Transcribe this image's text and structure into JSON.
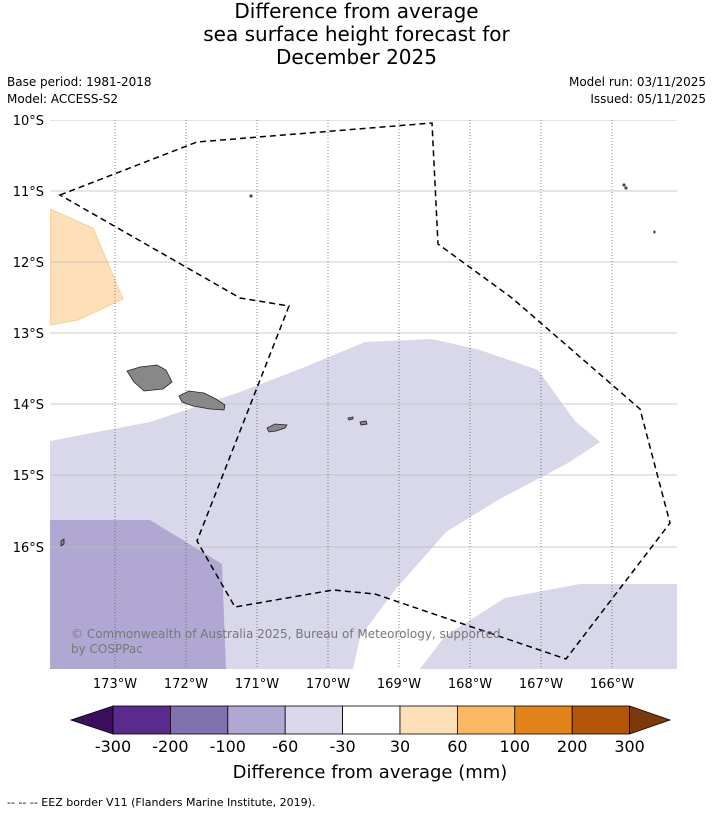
{
  "title": {
    "line1": "Difference from average",
    "line2": "sea surface height forecast for",
    "line3": "December 2025"
  },
  "meta": {
    "base_period": "Base period: 1981-2018",
    "model": "Model: ACCESS-S2",
    "model_run": "Model run: 03/11/2025",
    "issued": "Issued: 05/11/2025"
  },
  "map": {
    "lat_labels": [
      "10°S",
      "11°S",
      "12°S",
      "13°S",
      "14°S",
      "15°S",
      "16°S"
    ],
    "lon_labels": [
      "173°W",
      "172°W",
      "171°W",
      "170°W",
      "169°W",
      "168°W",
      "167°W",
      "166°W"
    ],
    "copyright_line1": "© Commonwealth of Australia 2025, Bureau of Meteorology, supported",
    "copyright_line2": "by COSPPac"
  },
  "colorbar": {
    "label": "Difference from average (mm)",
    "ticks": [
      "-300",
      "-200",
      "-100",
      "-60",
      "-30",
      "30",
      "60",
      "100",
      "200",
      "300"
    ],
    "colors": [
      "#3b0f5e",
      "#5a2a8c",
      "#8070ae",
      "#b0a8d2",
      "#d8d8ea",
      "#ffffff",
      "#fde0b7",
      "#fbb863",
      "#e2841a",
      "#b45608",
      "#7c3a0b"
    ]
  },
  "footnote": "-- -- -- EEZ border V11 (Flanders Marine Institute, 2019)."
}
